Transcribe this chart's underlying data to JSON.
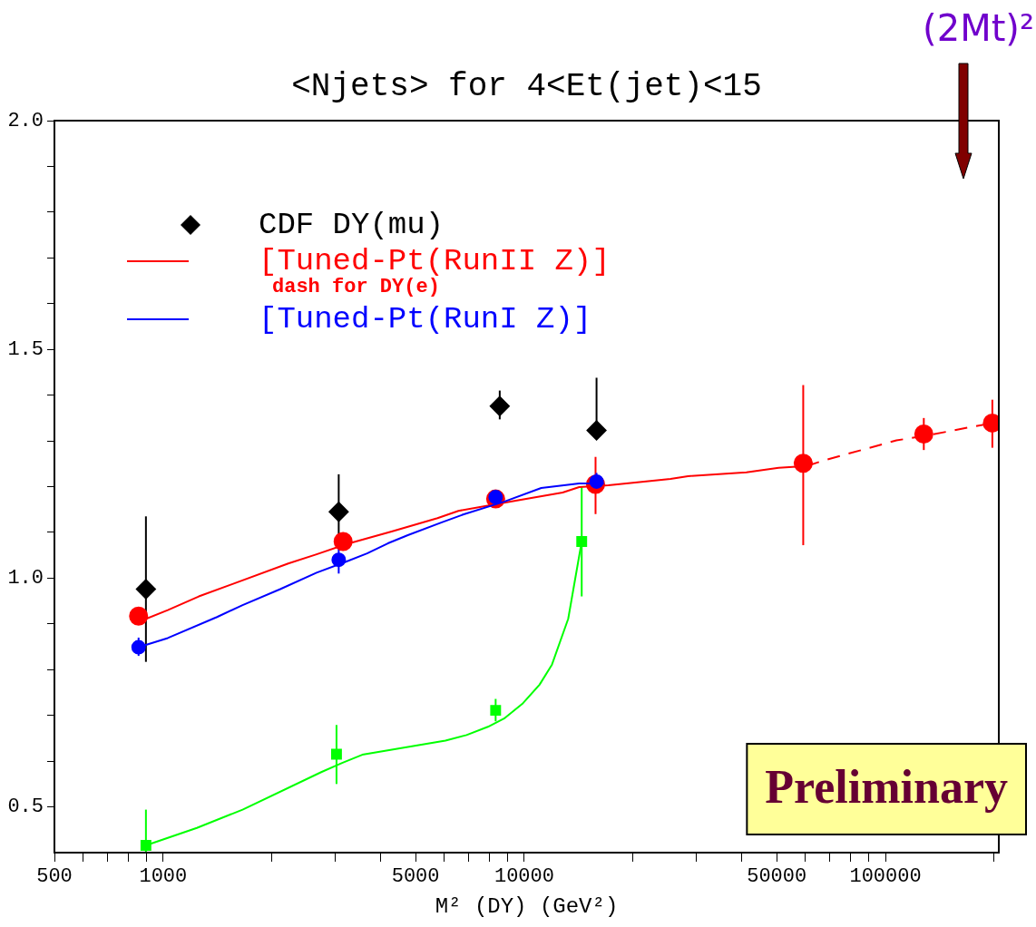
{
  "chart_data": {
    "type": "line",
    "title": "<Njets> for 4<Et(jet)<15",
    "xlabel": "M² (DY) (GeV²)",
    "log": "x",
    "grid": false,
    "legend": "top left",
    "xlim": [
      500,
      206000
    ],
    "ylim": [
      0.4,
      2.0
    ],
    "xticks": [
      500,
      {
        "value": 600,
        "label": null
      },
      {
        "value": 700,
        "label": null
      },
      {
        "value": 800,
        "label": null
      },
      {
        "value": 900,
        "label": null
      },
      1000,
      {
        "value": 2000,
        "label": null
      },
      {
        "value": 3000,
        "label": null
      },
      {
        "value": 4000,
        "label": null
      },
      5000,
      {
        "value": 6000,
        "label": null
      },
      {
        "value": 7000,
        "label": null
      },
      {
        "value": 8000,
        "label": null
      },
      {
        "value": 9000,
        "label": null
      },
      10000,
      {
        "value": 20000,
        "label": null
      },
      {
        "value": 30000,
        "label": null
      },
      {
        "value": 40000,
        "label": null
      },
      50000,
      {
        "value": 60000,
        "label": null
      },
      {
        "value": 70000,
        "label": null
      },
      {
        "value": 80000,
        "label": null
      },
      {
        "value": 90000,
        "label": null
      },
      100000,
      {
        "value": 200000,
        "label": null
      }
    ],
    "yticks": [
      0.5,
      {
        "value": 0.6,
        "label": null
      },
      {
        "value": 0.7,
        "label": null
      },
      {
        "value": 0.8,
        "label": null
      },
      {
        "value": 0.9,
        "label": null
      },
      {
        "value": 1,
        "label": "1.0"
      },
      {
        "value": 1.1,
        "label": null
      },
      {
        "value": 1.2,
        "label": null
      },
      {
        "value": 1.3,
        "label": null
      },
      {
        "value": 1.4,
        "label": null
      },
      1.5,
      {
        "value": 1.6,
        "label": null
      },
      {
        "value": 1.7,
        "label": null
      },
      {
        "value": 1.8,
        "label": null
      },
      {
        "value": 1.9,
        "label": null
      },
      {
        "value": 2,
        "label": "2.0"
      }
    ],
    "annotations": [
      "dash for DY(e)",
      "Preliminary",
      "(2Mt)²"
    ],
    "series": [
      {
        "name": "CDF DY(mu)",
        "type": "scatter",
        "marker": "diamond",
        "color": "#000000",
        "x": [
          896,
          3063,
          8550,
          15850
        ],
        "values": [
          0.976,
          1.145,
          1.376,
          1.323
        ],
        "errors": [
          [
            0.817,
            1.135
          ],
          [
            1.066,
            1.227
          ],
          [
            1.347,
            1.41
          ],
          [
            1.323,
            1.438
          ]
        ]
      },
      {
        "name": "[Tuned-Pt(RunII Z)]",
        "marker": "none",
        "line_style": "solid",
        "color": "#ff0000",
        "x": [
          865,
          1030,
          1255,
          2220,
          2660,
          3210,
          4290,
          5750,
          6570,
          8790,
          12770,
          14190,
          17100,
          25400,
          28400,
          41200,
          50600,
          60600
        ],
        "values": [
          0.906,
          0.93,
          0.96,
          1.032,
          1.052,
          1.074,
          1.102,
          1.131,
          1.147,
          1.165,
          1.187,
          1.199,
          1.203,
          1.217,
          1.223,
          1.231,
          1.241,
          1.245
        ]
      },
      {
        "marker": "none",
        "line_style": "dashed",
        "color": "#ff0000",
        "x": [
          60600,
          67300,
          107200,
          133000,
          169000,
          197700
        ],
        "values": [
          1.245,
          1.257,
          1.301,
          1.313,
          1.329,
          1.339
        ]
      },
      {
        "type": "scatter",
        "marker": "circle",
        "color": "#ff0000",
        "x": [
          855,
          3150,
          8330,
          15750,
          59200,
          127700,
          197700
        ],
        "values": [
          0.917,
          1.08,
          1.173,
          1.205,
          1.251,
          1.315,
          1.339
        ],
        "errors": [
          null,
          [
            1.06,
            1.1
          ],
          null,
          [
            1.14,
            1.265
          ],
          [
            1.072,
            1.422
          ],
          [
            1.28,
            1.35
          ],
          [
            1.285,
            1.39
          ]
        ]
      },
      {
        "name": "[Tuned-Pt(RunI Z)]",
        "marker": "none",
        "line_style": "solid",
        "color": "#0000ff",
        "x": [
          855,
          1030,
          1410,
          1660,
          2110,
          2660,
          3210,
          3670,
          4190,
          4760,
          5910,
          6770,
          8790,
          11140,
          14190,
          16600
        ],
        "values": [
          0.849,
          0.869,
          0.915,
          0.941,
          0.976,
          1.012,
          1.036,
          1.054,
          1.076,
          1.094,
          1.122,
          1.139,
          1.167,
          1.197,
          1.207,
          1.207
        ]
      },
      {
        "type": "scatter",
        "marker": "circle",
        "color": "#0000ff",
        "x": [
          855,
          3063,
          8330,
          15850
        ],
        "values": [
          0.849,
          1.04,
          1.177,
          1.211
        ],
        "errors": [
          [
            0.83,
            0.87
          ],
          [
            1.01,
            1.07
          ],
          null,
          [
            1.19,
            1.23
          ]
        ]
      },
      {
        "marker": "none",
        "line_style": "solid",
        "color": "#00ff00",
        "x": [
          896,
          1240,
          1660,
          2740,
          3130,
          3560,
          6050,
          6920,
          7930,
          8790,
          9870,
          11020,
          11930,
          13230,
          14420
        ],
        "values": [
          0.416,
          0.454,
          0.494,
          0.576,
          0.596,
          0.614,
          0.645,
          0.657,
          0.675,
          0.693,
          0.725,
          0.767,
          0.811,
          0.911,
          1.08
        ]
      },
      {
        "type": "scatter",
        "marker": "square",
        "color": "#00ff00",
        "x": [
          896,
          3020,
          8330,
          14420
        ],
        "values": [
          0.416,
          0.615,
          0.711,
          1.08
        ],
        "errors": [
          [
            0.4,
            0.494
          ],
          [
            0.55,
            0.679
          ],
          [
            0.687,
            0.736
          ],
          [
            0.96,
            1.2
          ]
        ]
      }
    ]
  }
}
